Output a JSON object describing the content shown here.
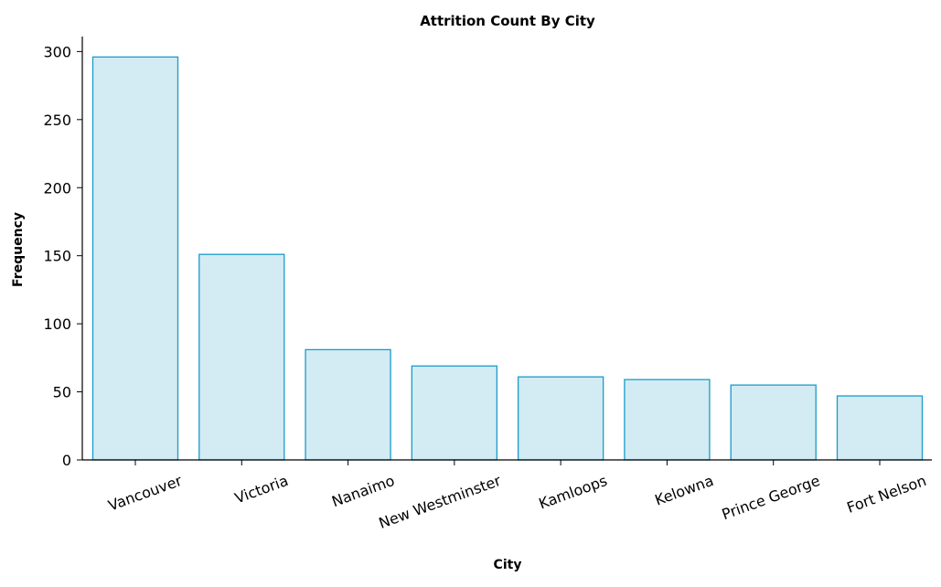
{
  "chart_data": {
    "type": "bar",
    "title": "Attrition Count By City",
    "xlabel": "City",
    "ylabel": "Frequency",
    "categories": [
      "Vancouver",
      "Victoria",
      "Nanaimo",
      "New Westminster",
      "Kamloops",
      "Kelowna",
      "Prince George",
      "Fort Nelson"
    ],
    "values": [
      296,
      151,
      81,
      69,
      61,
      59,
      55,
      47
    ],
    "ylim": [
      0,
      311
    ],
    "yticks": [
      0,
      50,
      100,
      150,
      200,
      250,
      300
    ],
    "grid": false,
    "legend": "none",
    "colors": {
      "bar_fill": "#d3ebf2",
      "bar_edge": "#1a9bcb"
    }
  }
}
